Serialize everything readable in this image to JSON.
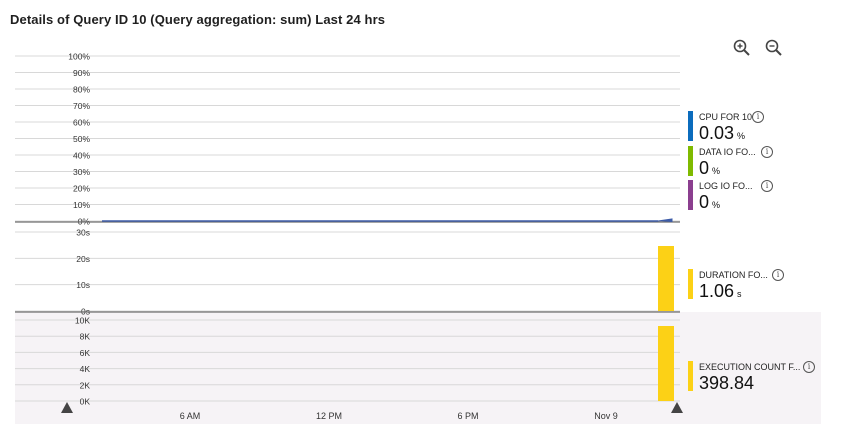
{
  "title": "Details of Query ID 10 (Query aggregation: sum) Last 24 hrs",
  "toolbar": {
    "zoom_in_icon": "zoom-in-icon",
    "zoom_out_icon": "zoom-out-icon"
  },
  "panels": {
    "percent": {
      "ticks": [
        "100%",
        "90%",
        "80%",
        "70%",
        "60%",
        "50%",
        "40%",
        "30%",
        "20%",
        "10%",
        "0%"
      ]
    },
    "duration": {
      "ticks": [
        "30s",
        "20s",
        "10s",
        "0s"
      ]
    },
    "execution": {
      "ticks": [
        "10K",
        "8K",
        "6K",
        "4K",
        "2K",
        "0K"
      ]
    }
  },
  "x_axis": {
    "labels": [
      "6 AM",
      "12 PM",
      "6 PM",
      "Nov 9"
    ]
  },
  "metrics": [
    {
      "label": "CPU FOR 10",
      "value": "0.03",
      "unit": "%",
      "color": "#0b6cbd"
    },
    {
      "label": "DATA IO FO...",
      "value": "0",
      "unit": "%",
      "color": "#7fba00"
    },
    {
      "label": "LOG IO FO...",
      "value": "0",
      "unit": "%",
      "color": "#8b3f8f"
    },
    {
      "label": "DURATION FO...",
      "value": "1.06",
      "unit": "s",
      "color": "#fcd116"
    },
    {
      "label": "EXECUTION COUNT F...",
      "value": "398.84",
      "unit": "",
      "color": "#fcd116"
    }
  ],
  "colors": {
    "accent_yellow": "#fcd116",
    "line_blue": "#3d5ca8",
    "grid": "#d8d8d8"
  }
}
